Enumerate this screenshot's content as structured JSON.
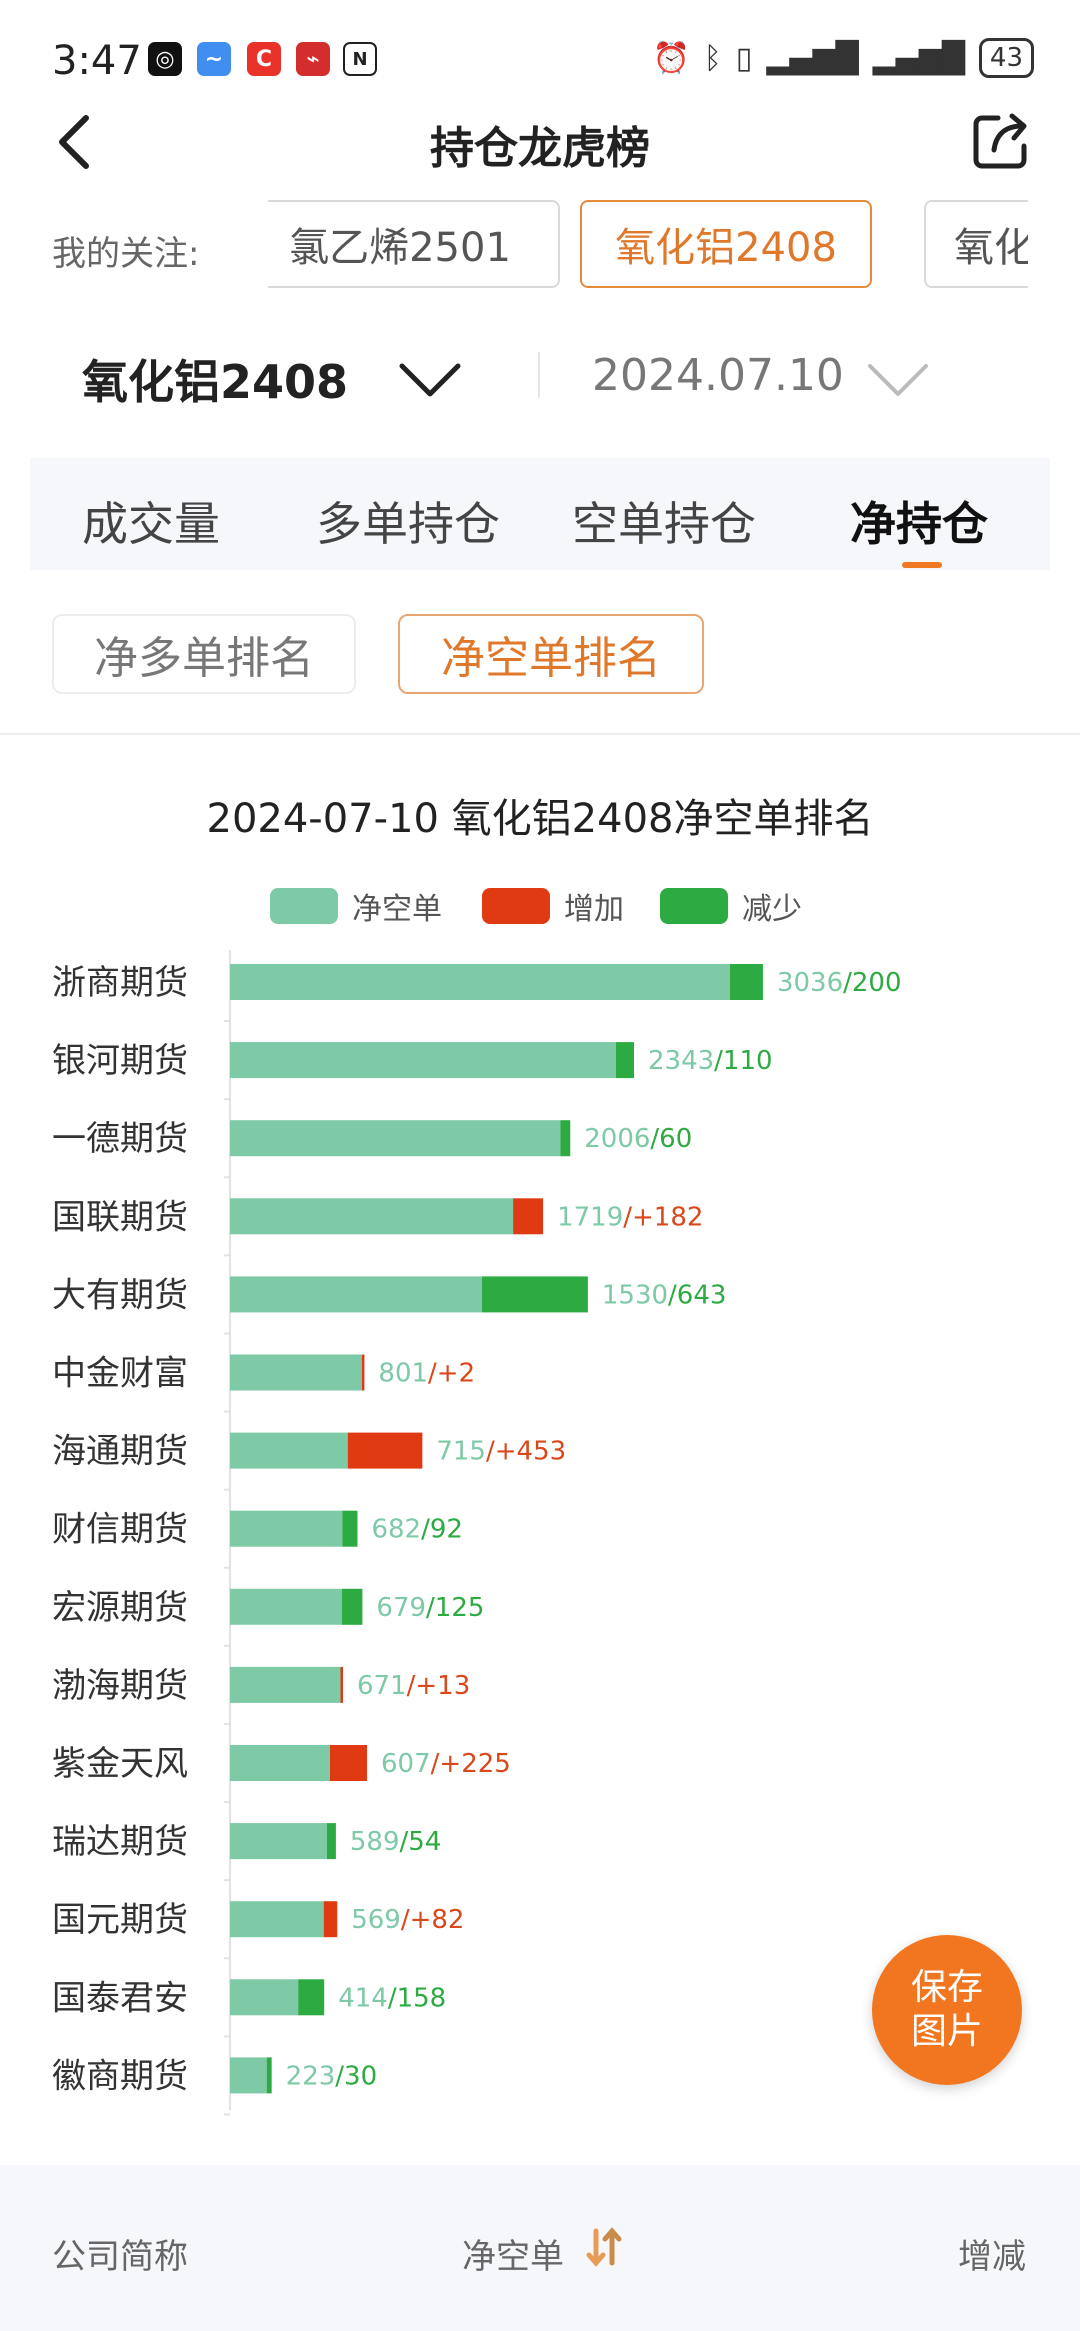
{
  "status_bar": {
    "time": "3:47",
    "battery": "43"
  },
  "header": {
    "title": "持仓龙虎榜"
  },
  "follow": {
    "label": "我的关注:",
    "chips": [
      "氯乙烯2501",
      "氧化铝2408",
      "氧化"
    ],
    "active_index": 1
  },
  "selectors": {
    "contract": "氧化铝2408",
    "date": "2024.07.10"
  },
  "tabs": [
    {
      "label": "成交量"
    },
    {
      "label": "多单持仓"
    },
    {
      "label": "空单持仓"
    },
    {
      "label": "净持仓"
    }
  ],
  "active_tab": 3,
  "sub_tabs": [
    {
      "label": "净多单排名"
    },
    {
      "label": "净空单排名"
    }
  ],
  "active_sub_tab": 1,
  "legend": {
    "net": "净空单",
    "increase": "增加",
    "decrease": "减少"
  },
  "colors": {
    "net": "#7ec9a6",
    "increase": "#e03a12",
    "decrease": "#2eaa42",
    "accent": "#f07a23"
  },
  "chart_data": {
    "type": "bar",
    "title": "2024-07-10 氧化铝2408净空单排名",
    "categories": [
      "浙商期货",
      "银河期货",
      "一德期货",
      "国联期货",
      "大有期货",
      "中金财富",
      "海通期货",
      "财信期货",
      "宏源期货",
      "渤海期货",
      "紫金天风",
      "瑞达期货",
      "国元期货",
      "国泰君安",
      "徽商期货"
    ],
    "series": [
      {
        "name": "净空单",
        "values": [
          3036,
          2343,
          2006,
          1719,
          1530,
          801,
          715,
          682,
          679,
          671,
          607,
          589,
          569,
          414,
          223
        ]
      },
      {
        "name": "变化",
        "values": [
          -200,
          -110,
          -60,
          182,
          -643,
          2,
          453,
          -92,
          -125,
          13,
          225,
          -54,
          82,
          -158,
          -30
        ]
      }
    ],
    "labels": [
      "3036/200",
      "2343/110",
      "2006/60",
      "1719/+182",
      "1530/643",
      "801/+2",
      "715/+453",
      "682/92",
      "679/125",
      "671/+13",
      "607/+225",
      "589/54",
      "569/+82",
      "414/158",
      "223/30"
    ]
  },
  "save_button": {
    "line1": "保存",
    "line2": "图片"
  },
  "bottom_bar": {
    "company": "公司简称",
    "net": "净空单",
    "change": "增减"
  }
}
